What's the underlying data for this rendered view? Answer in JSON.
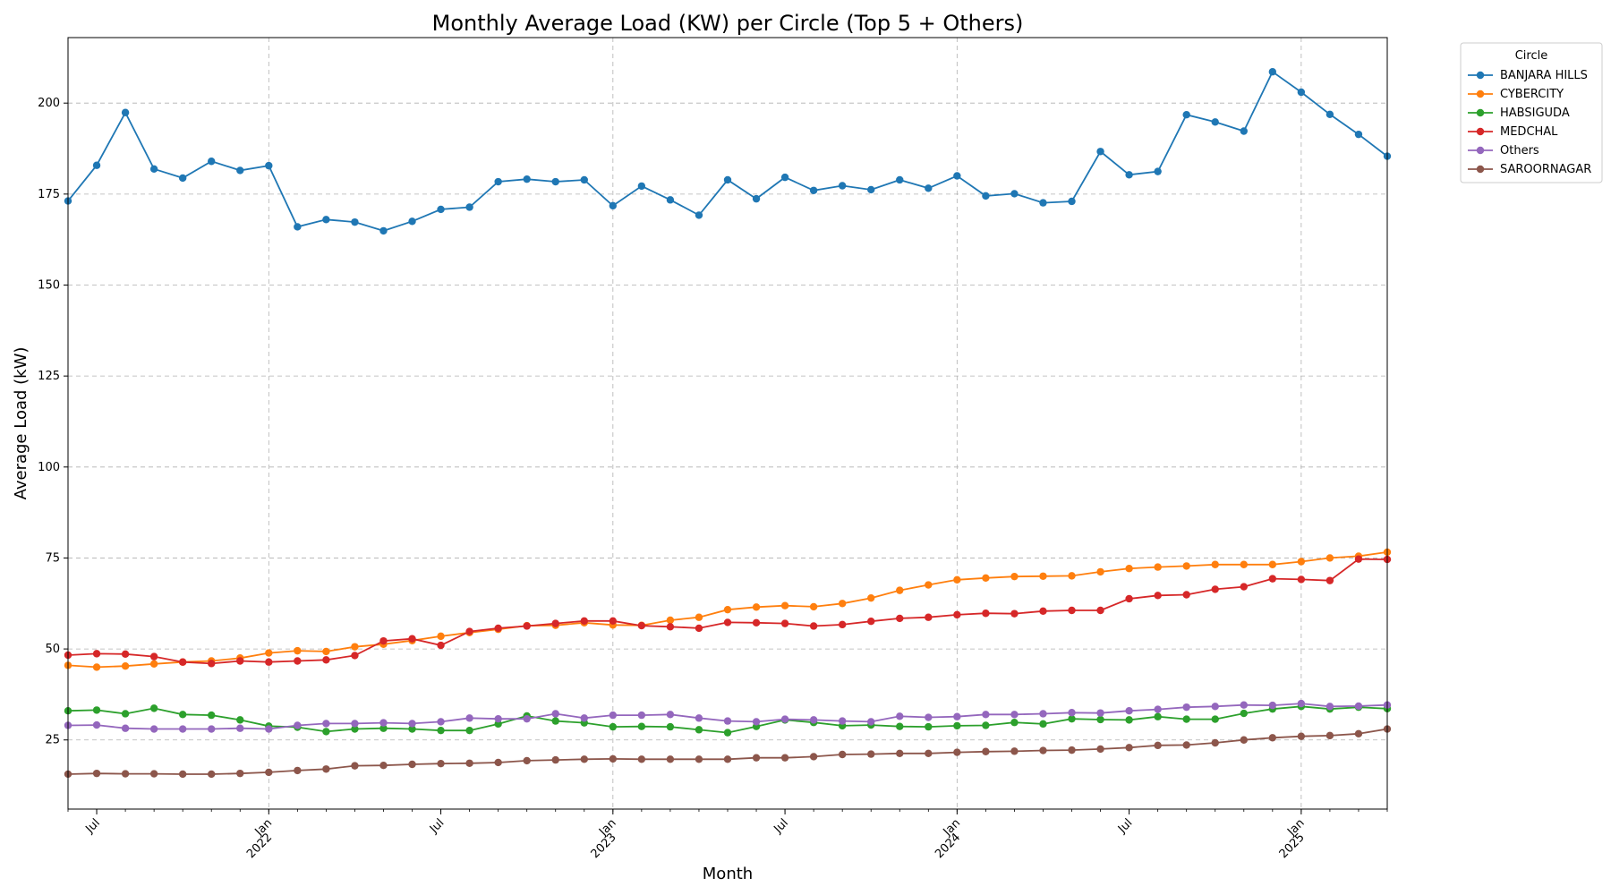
{
  "chart_data": {
    "type": "line",
    "title": "Monthly Average Load (KW) per Circle (Top 5 + Others)",
    "xlabel": "Month",
    "ylabel": "Average Load (kW)",
    "x_start": "2021-06",
    "x_end": "2025-04",
    "ylim": [
      6,
      218
    ],
    "yticks": [
      25,
      50,
      75,
      100,
      125,
      150,
      175,
      200
    ],
    "xticks": [
      {
        "date": "2021-07",
        "label": "Jul",
        "sub": ""
      },
      {
        "date": "2022-01",
        "label": "Jan",
        "sub": "2022"
      },
      {
        "date": "2022-07",
        "label": "Jul",
        "sub": ""
      },
      {
        "date": "2023-01",
        "label": "Jan",
        "sub": "2023"
      },
      {
        "date": "2023-07",
        "label": "Jul",
        "sub": ""
      },
      {
        "date": "2024-01",
        "label": "Jan",
        "sub": "2024"
      },
      {
        "date": "2024-07",
        "label": "Jul",
        "sub": ""
      },
      {
        "date": "2025-01",
        "label": "Jan",
        "sub": "2025"
      }
    ],
    "grid": true,
    "legend": {
      "title": "Circle",
      "placement": "outside-upper-right"
    },
    "series": [
      {
        "name": "BANJARA HILLS",
        "color": "#1f77b4",
        "values": [
          173.1,
          182.9,
          197.4,
          181.9,
          179.4,
          184.0,
          181.5,
          182.8,
          166.0,
          168.0,
          167.3,
          164.9,
          167.5,
          170.8,
          171.4,
          178.4,
          179.1,
          178.4,
          178.9,
          171.8,
          177.2,
          173.4,
          169.2,
          178.9,
          173.7,
          179.6,
          176.0,
          177.3,
          176.2,
          178.9,
          176.6,
          180.0,
          174.5,
          175.1,
          172.6,
          173.0,
          186.7,
          180.3,
          181.2,
          196.8,
          194.8,
          192.3,
          208.6,
          203.0,
          196.9,
          191.4,
          185.4
        ]
      },
      {
        "name": "CYBERCITY",
        "color": "#ff7f0e",
        "values": [
          45.5,
          45.0,
          45.3,
          45.9,
          46.4,
          46.7,
          47.5,
          48.9,
          49.5,
          49.3,
          50.6,
          51.3,
          52.3,
          53.5,
          54.5,
          55.4,
          56.4,
          56.5,
          57.2,
          56.6,
          56.5,
          57.9,
          58.7,
          60.8,
          61.5,
          61.9,
          61.6,
          62.5,
          64.0,
          66.1,
          67.6,
          69.0,
          69.5,
          69.9,
          70.0,
          70.1,
          71.2,
          72.1,
          72.5,
          72.8,
          73.2,
          73.2,
          73.2,
          74.0,
          75.0,
          75.5,
          76.6
        ]
      },
      {
        "name": "HABSIGUDA",
        "color": "#2ca02c",
        "values": [
          33.0,
          33.2,
          32.2,
          33.7,
          32.0,
          31.8,
          30.5,
          28.8,
          28.5,
          27.3,
          28.0,
          28.2,
          28.0,
          27.6,
          27.6,
          29.4,
          31.6,
          30.2,
          29.7,
          28.6,
          28.7,
          28.6,
          27.8,
          27.0,
          28.7,
          30.5,
          29.8,
          28.9,
          29.1,
          28.7,
          28.6,
          28.9,
          29.0,
          29.8,
          29.4,
          30.8,
          30.6,
          30.5,
          31.4,
          30.7,
          30.7,
          32.3,
          33.5,
          34.2,
          33.5,
          34.0,
          33.6
        ]
      },
      {
        "name": "MEDCHAL",
        "color": "#d62728",
        "values": [
          48.3,
          48.7,
          48.6,
          47.9,
          46.4,
          46.0,
          46.7,
          46.4,
          46.7,
          47.0,
          48.2,
          52.2,
          52.8,
          51.0,
          54.8,
          55.7,
          56.3,
          57.0,
          57.7,
          57.7,
          56.4,
          56.1,
          55.7,
          57.3,
          57.2,
          57.0,
          56.3,
          56.7,
          57.6,
          58.4,
          58.7,
          59.4,
          59.8,
          59.7,
          60.4,
          60.6,
          60.6,
          63.8,
          64.7,
          64.9,
          66.4,
          67.1,
          69.3,
          69.1,
          68.8,
          74.7,
          74.6
        ]
      },
      {
        "name": "Others",
        "color": "#9467bd",
        "values": [
          29.0,
          29.1,
          28.2,
          28.0,
          28.0,
          28.0,
          28.2,
          28.0,
          29.0,
          29.5,
          29.5,
          29.7,
          29.5,
          30.0,
          31.0,
          30.8,
          30.8,
          32.2,
          31.0,
          31.8,
          31.8,
          32.0,
          31.0,
          30.2,
          30.0,
          30.7,
          30.5,
          30.2,
          30.0,
          31.5,
          31.2,
          31.4,
          32.0,
          32.0,
          32.2,
          32.5,
          32.4,
          33.0,
          33.4,
          34.0,
          34.2,
          34.6,
          34.5,
          35.0,
          34.2,
          34.3,
          34.6
        ]
      },
      {
        "name": "SAROORNAGAR",
        "color": "#8c564b",
        "values": [
          15.6,
          15.8,
          15.7,
          15.7,
          15.6,
          15.6,
          15.8,
          16.1,
          16.6,
          17.0,
          17.9,
          18.0,
          18.3,
          18.5,
          18.6,
          18.8,
          19.3,
          19.5,
          19.7,
          19.8,
          19.7,
          19.7,
          19.7,
          19.7,
          20.1,
          20.1,
          20.4,
          21.0,
          21.1,
          21.3,
          21.3,
          21.6,
          21.8,
          21.9,
          22.1,
          22.2,
          22.5,
          22.9,
          23.5,
          23.6,
          24.2,
          25.0,
          25.6,
          26.0,
          26.2,
          26.7,
          28.0
        ]
      }
    ]
  }
}
